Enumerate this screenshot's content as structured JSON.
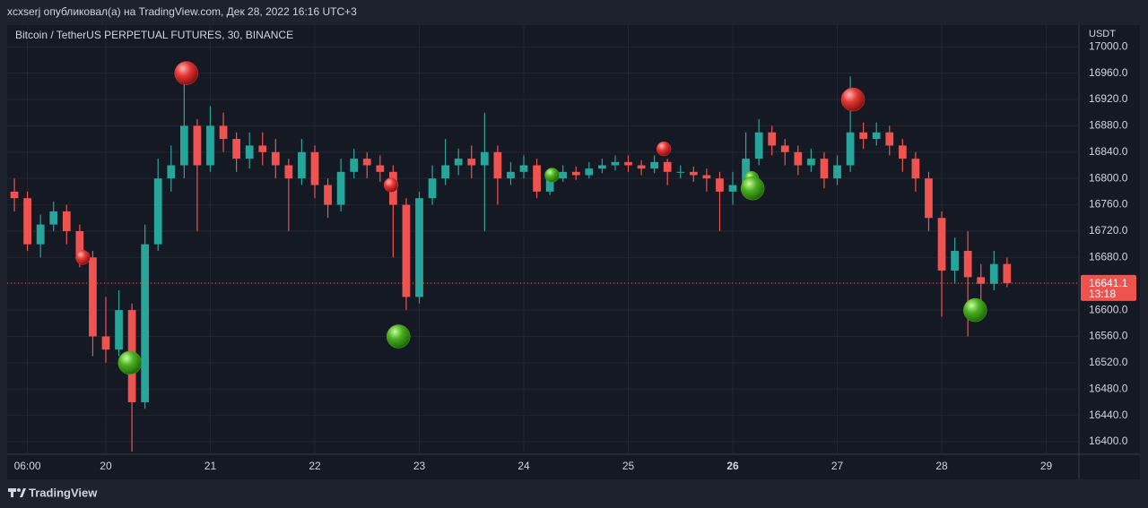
{
  "header": {
    "title": "xcxserj опубликовал(а) на TradingView.com, Дек 28, 2022 16:16 UTC+3"
  },
  "footer": {
    "brand": "TradingView"
  },
  "chart_data": {
    "type": "candlestick",
    "title": "Bitcoin / TetherUS PERPETUAL FUTURES, 30, BINANCE",
    "currency": "USDT",
    "up_color": "#26a69a",
    "down_color": "#ef5350",
    "x": [
      19.125,
      19.25,
      19.375,
      19.5,
      19.625,
      19.75,
      19.875,
      20,
      20.125,
      20.25,
      20.375,
      20.5,
      20.625,
      20.75,
      20.875,
      21,
      21.125,
      21.25,
      21.375,
      21.5,
      21.625,
      21.75,
      21.875,
      22,
      22.125,
      22.25,
      22.375,
      22.5,
      22.625,
      22.75,
      22.875,
      23,
      23.125,
      23.25,
      23.375,
      23.5,
      23.625,
      23.75,
      23.875,
      24,
      24.125,
      24.25,
      24.375,
      24.5,
      24.625,
      24.75,
      24.875,
      25,
      25.125,
      25.25,
      25.375,
      25.5,
      25.625,
      25.75,
      25.875,
      26,
      26.125,
      26.25,
      26.375,
      26.5,
      26.625,
      26.75,
      26.875,
      27,
      27.125,
      27.25,
      27.375,
      27.5,
      27.625,
      27.75,
      27.875,
      28,
      28.125,
      28.25,
      28.375,
      28.5,
      28.625
    ],
    "open": [
      16780,
      16770,
      16700,
      16730,
      16750,
      16720,
      16680,
      16560,
      16540,
      16600,
      16460,
      16700,
      16800,
      16820,
      16880,
      16820,
      16880,
      16860,
      16830,
      16850,
      16840,
      16820,
      16800,
      16840,
      16790,
      16760,
      16810,
      16830,
      16820,
      16810,
      16760,
      16620,
      16770,
      16800,
      16820,
      16830,
      16820,
      16840,
      16800,
      16810,
      16820,
      16780,
      16800,
      16810,
      16805,
      16815,
      16820,
      16825,
      16820,
      16815,
      16825,
      16810,
      16810,
      16805,
      16800,
      16780,
      16790,
      16830,
      16870,
      16850,
      16840,
      16820,
      16830,
      16800,
      16820,
      16870,
      16860,
      16870,
      16850,
      16830,
      16800,
      16740,
      16660,
      16690,
      16650,
      16640,
      16670
    ],
    "high": [
      16800,
      16780,
      16745,
      16765,
      16760,
      16730,
      16690,
      16620,
      16630,
      16610,
      16730,
      16830,
      16850,
      16975,
      16890,
      16910,
      16900,
      16870,
      16870,
      16870,
      16860,
      16830,
      16860,
      16850,
      16800,
      16830,
      16845,
      16840,
      16835,
      16820,
      16770,
      16780,
      16820,
      16860,
      16845,
      16850,
      16900,
      16850,
      16825,
      16835,
      16830,
      16815,
      16820,
      16818,
      16825,
      16830,
      16835,
      16835,
      16828,
      16835,
      16830,
      16820,
      16818,
      16815,
      16810,
      16810,
      16870,
      16890,
      16880,
      16860,
      16850,
      16845,
      16840,
      16835,
      16955,
      16885,
      16885,
      16880,
      16860,
      16840,
      16810,
      16750,
      16710,
      16720,
      16670,
      16690,
      16680
    ],
    "low": [
      16750,
      16690,
      16680,
      16720,
      16700,
      16665,
      16530,
      16520,
      16530,
      16385,
      16450,
      16690,
      16780,
      16800,
      16720,
      16810,
      16840,
      16810,
      16815,
      16820,
      16800,
      16720,
      16790,
      16770,
      16740,
      16750,
      16800,
      16800,
      16795,
      16680,
      16600,
      16610,
      16760,
      16790,
      16805,
      16800,
      16720,
      16760,
      16790,
      16800,
      16770,
      16775,
      16795,
      16798,
      16800,
      16808,
      16812,
      16810,
      16805,
      16808,
      16790,
      16800,
      16795,
      16780,
      16720,
      16760,
      16780,
      16820,
      16835,
      16820,
      16805,
      16810,
      16785,
      16790,
      16810,
      16845,
      16850,
      16835,
      16810,
      16780,
      16720,
      16590,
      16640,
      16560,
      16610,
      16630,
      16635
    ],
    "close": [
      16770,
      16700,
      16730,
      16750,
      16720,
      16680,
      16560,
      16540,
      16600,
      16460,
      16700,
      16800,
      16820,
      16880,
      16820,
      16880,
      16860,
      16830,
      16850,
      16840,
      16820,
      16800,
      16840,
      16790,
      16760,
      16810,
      16830,
      16820,
      16810,
      16760,
      16620,
      16770,
      16800,
      16820,
      16830,
      16820,
      16840,
      16800,
      16810,
      16820,
      16780,
      16800,
      16810,
      16805,
      16815,
      16820,
      16825,
      16820,
      16815,
      16825,
      16810,
      16810,
      16805,
      16800,
      16780,
      16790,
      16830,
      16870,
      16850,
      16840,
      16820,
      16830,
      16800,
      16820,
      16870,
      16860,
      16870,
      16850,
      16830,
      16800,
      16740,
      16660,
      16690,
      16650,
      16640,
      16670,
      16641.1
    ],
    "sell_markers": {
      "color": "#e53935",
      "x": [
        19.78,
        20.77,
        22.73,
        25.34,
        27.15
      ],
      "y": [
        16680,
        16960,
        16790,
        16845,
        16920
      ],
      "size": [
        8,
        13,
        8,
        8,
        13
      ]
    },
    "buy_markers": {
      "color": "#4caf22",
      "x": [
        20.23,
        22.8,
        24.27,
        26.18,
        26.19,
        28.32
      ],
      "y": [
        16520,
        16560,
        16805,
        16800,
        16785,
        16600
      ],
      "size": [
        13,
        13,
        8,
        8,
        13,
        13
      ]
    },
    "last_price": {
      "value": 16641.1,
      "countdown": "13:18"
    },
    "xlim": [
      19.056,
      29.313
    ],
    "xticks": [
      {
        "value": 19.25,
        "label": "06:00"
      },
      20,
      21,
      22,
      23,
      24,
      25,
      26,
      27,
      28,
      29
    ],
    "ylim": [
      16381,
      17033
    ],
    "yticks": [
      {
        "value": 16400,
        "label": "16400.0"
      },
      {
        "value": 16440,
        "label": "16440.0"
      },
      {
        "value": 16480,
        "label": "16480.0"
      },
      {
        "value": 16520,
        "label": "16520.0"
      },
      {
        "value": 16560,
        "label": "16560.0"
      },
      {
        "value": 16600,
        "label": "16600.0"
      },
      {
        "value": 16640,
        "label": "16640.0"
      },
      {
        "value": 16680,
        "label": "16680.0"
      },
      {
        "value": 16720,
        "label": "16720.0"
      },
      {
        "value": 16760,
        "label": "16760.0"
      },
      {
        "value": 16800,
        "label": "16800.0"
      },
      {
        "value": 16840,
        "label": "16840.0"
      },
      {
        "value": 16880,
        "label": "16880.0"
      },
      {
        "value": 16920,
        "label": "16920.0"
      },
      {
        "value": 16960,
        "label": "16960.0"
      },
      {
        "value": 17000,
        "label": "17000.0"
      }
    ],
    "grid": true
  }
}
